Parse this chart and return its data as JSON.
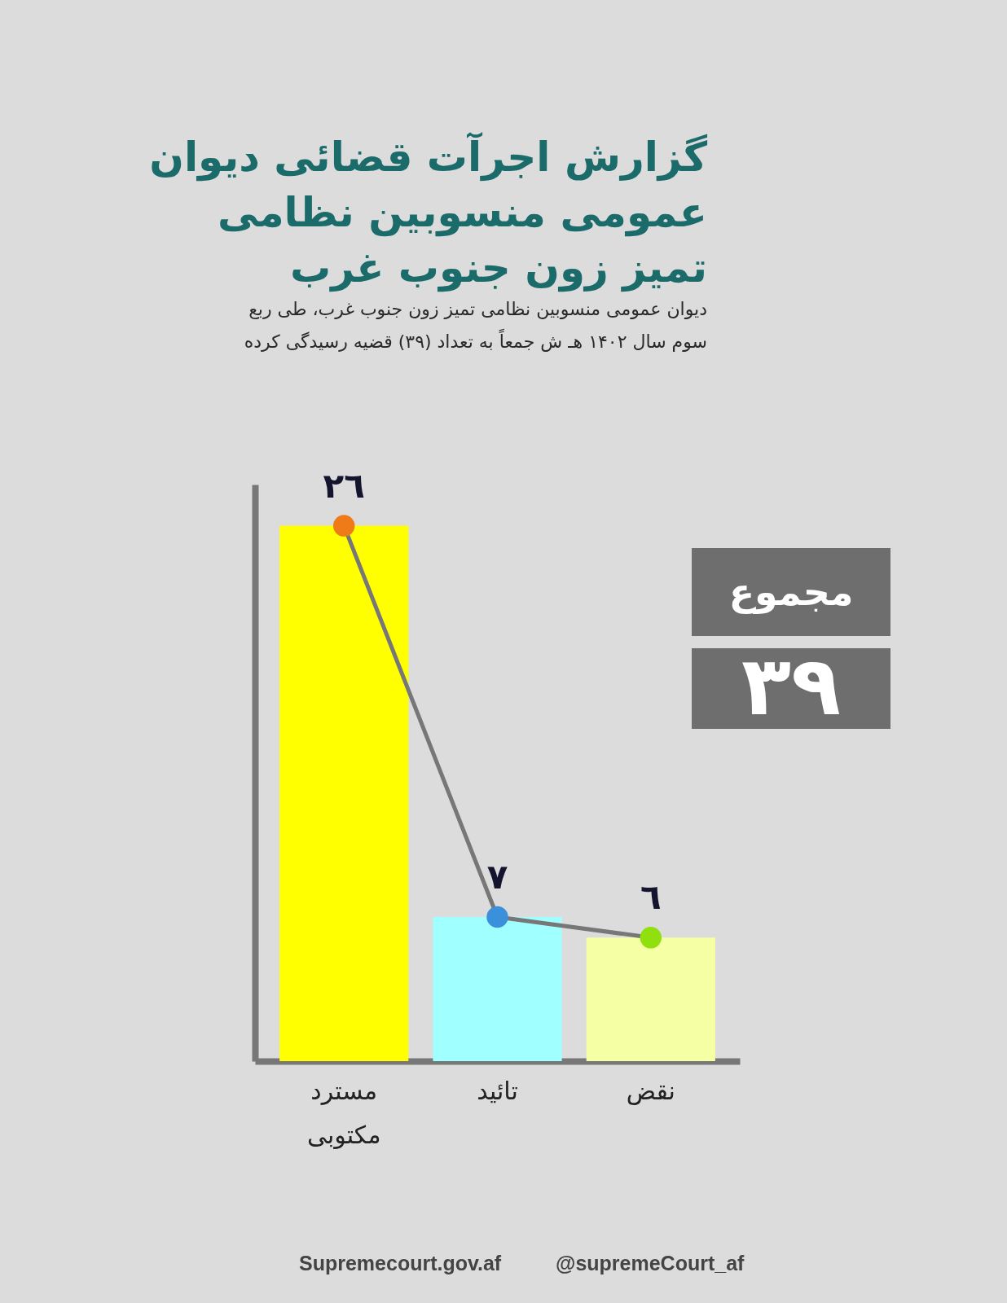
{
  "chart_data": {
    "type": "bar",
    "title": "گزارش اجرآت قضائی دیوان\nعمومی منسوبین نظامی\nتمیز زون جنوب غرب",
    "subtitle": "دیوان عمومی منسوبین نظامی تمیز زون جنوب غرب، طی ربع\nسوم سال ۱۴۰۲ هـ ش جمعاً به تعداد (۳۹) قضیه رسیدگی کرده",
    "categories": [
      "مسترد مکتوبی",
      "تائید",
      "نقض"
    ],
    "series": [
      {
        "colors": [
          "#ffff00",
          "#a0ffff",
          "#f5ffa3"
        ],
        "values": [
          26,
          7,
          6
        ],
        "value_labels": [
          "٢٦",
          "٧",
          "٦"
        ]
      },
      {
        "type": "line",
        "color": "#777777",
        "colors": [
          "#ef7b18",
          "#3b90db",
          "#8fe00e"
        ],
        "marker": "circle",
        "line_style": "solid",
        "values": [
          26,
          7,
          6
        ]
      }
    ],
    "ylim": [
      0,
      28
    ],
    "tick_labels": "x",
    "annotations": [
      "مجموع",
      "۳۹",
      "Supremecourt.gov.af",
      "@supremeCourt_af"
    ]
  }
}
